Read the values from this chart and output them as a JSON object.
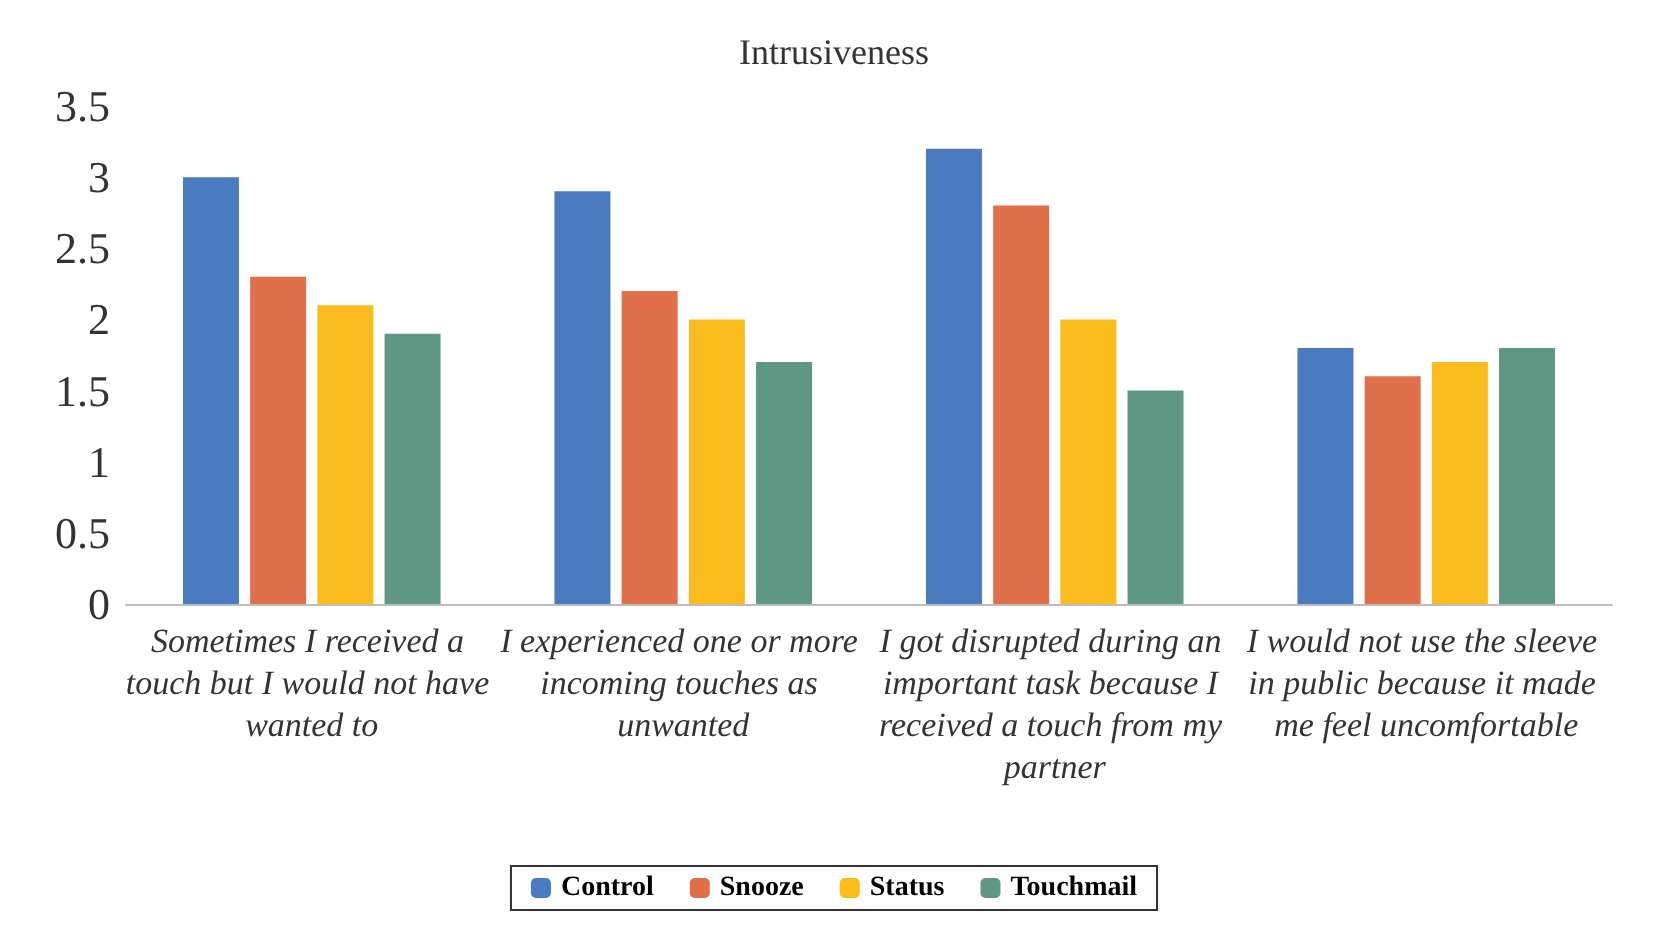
{
  "chart_data": {
    "type": "bar",
    "title": "Intrusiveness",
    "categories": [
      "Sometimes I received a touch but I would not have wanted to",
      "I experienced one or more incoming touches as unwanted",
      "I got disrupted during an important task because I received a touch from my partner",
      "I would not use the sleeve in public because it made me feel uncomfortable"
    ],
    "series": [
      {
        "name": "Control",
        "color": "#4a7abf",
        "values": [
          3.0,
          2.9,
          3.2,
          1.8
        ]
      },
      {
        "name": "Snooze",
        "color": "#e0704a",
        "values": [
          2.3,
          2.2,
          2.8,
          1.6
        ]
      },
      {
        "name": "Status",
        "color": "#f9bc1c",
        "values": [
          2.1,
          2.0,
          2.0,
          1.7
        ]
      },
      {
        "name": "Touchmail",
        "color": "#5e9784",
        "values": [
          1.9,
          1.7,
          1.5,
          1.8
        ]
      }
    ],
    "ylim": [
      0,
      3.5
    ],
    "yticks": [
      0,
      0.5,
      1,
      1.5,
      2,
      2.5,
      3,
      3.5
    ],
    "grid": false,
    "legend": "bottom"
  }
}
